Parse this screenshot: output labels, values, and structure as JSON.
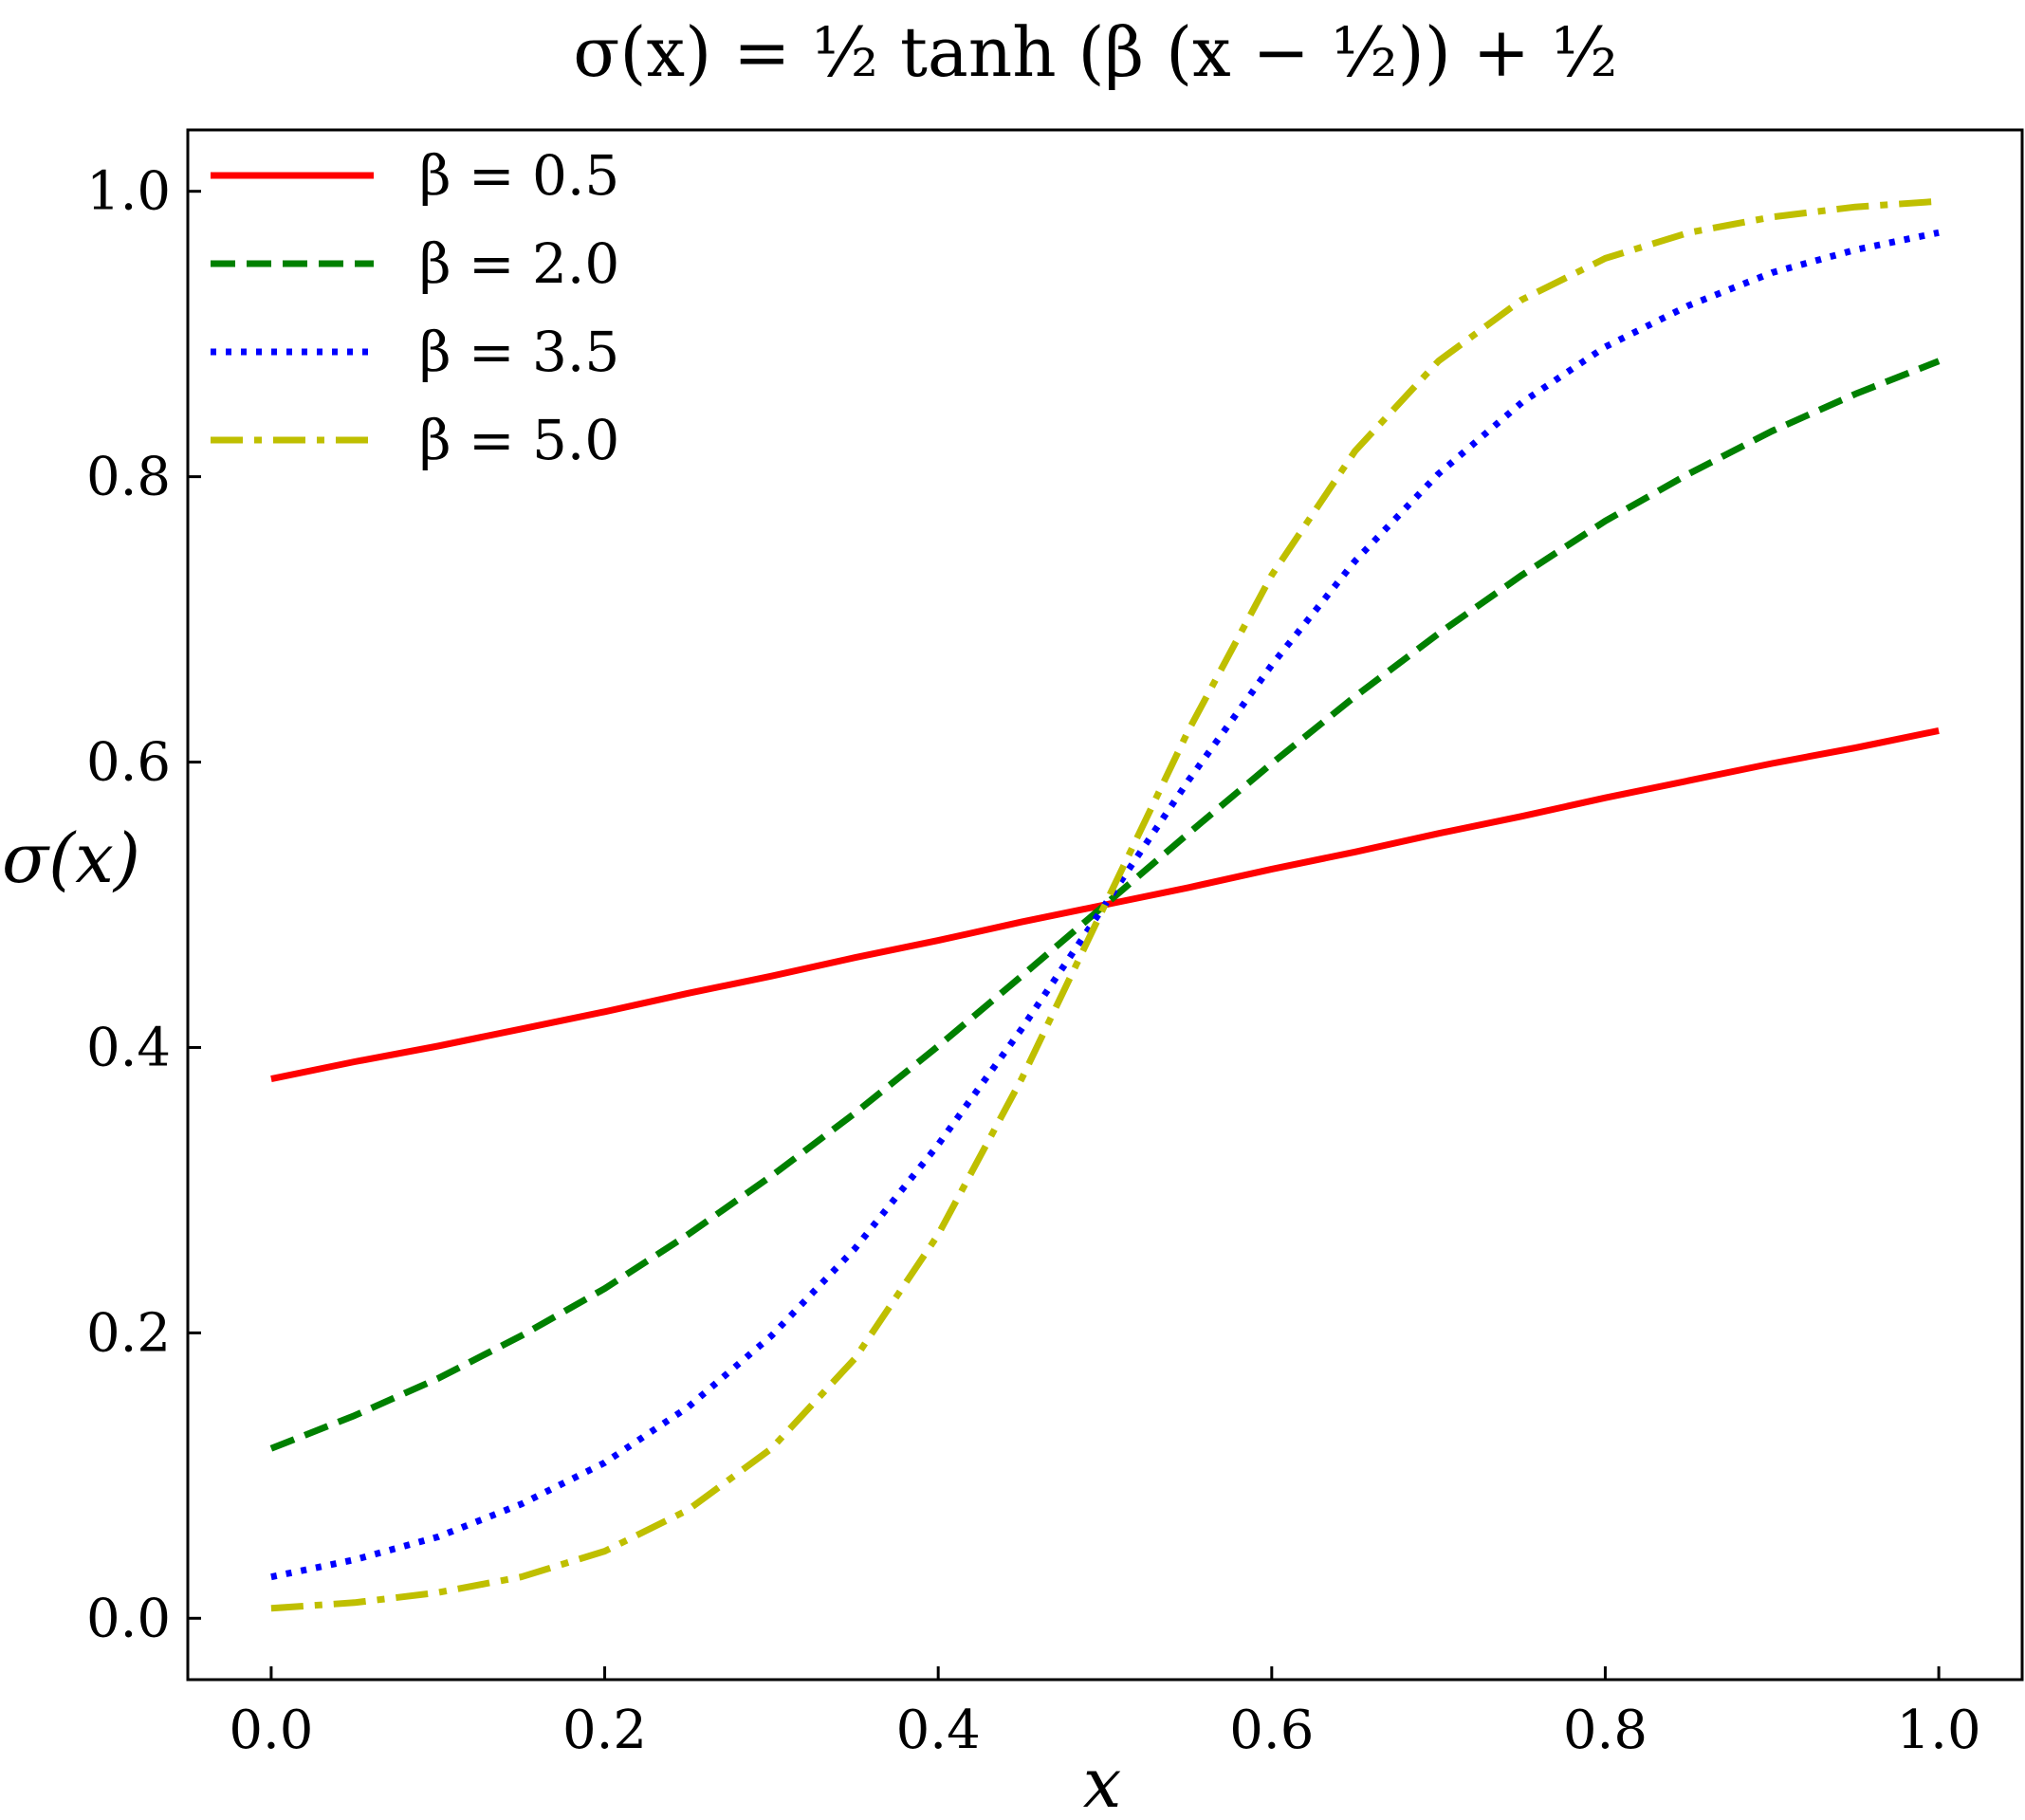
{
  "chart_data": {
    "type": "line",
    "title": "σ(x) = ½ tanh (β (x − ½)) + ½",
    "xlabel": "x",
    "ylabel": "σ(x)",
    "xlim": [
      -0.05,
      1.05
    ],
    "ylim": [
      -0.043,
      1.043
    ],
    "xticks": [
      0.0,
      0.2,
      0.4,
      0.6,
      0.8,
      1.0
    ],
    "yticks": [
      0.0,
      0.2,
      0.4,
      0.6,
      0.8,
      1.0
    ],
    "xtick_labels": [
      "0.0",
      "0.2",
      "0.4",
      "0.6",
      "0.8",
      "1.0"
    ],
    "ytick_labels": [
      "0.0",
      "0.2",
      "0.4",
      "0.6",
      "0.8",
      "1.0"
    ],
    "grid": false,
    "legend_position": "top-left",
    "x": [
      0.0,
      0.05,
      0.1,
      0.15,
      0.2,
      0.25,
      0.3,
      0.35,
      0.4,
      0.45,
      0.5,
      0.55,
      0.6,
      0.65,
      0.7,
      0.75,
      0.8,
      0.85,
      0.9,
      0.95,
      1.0
    ],
    "series": [
      {
        "name": "β = 0.5",
        "color": "#ff0000",
        "style": "solid",
        "values": [
          0.378,
          0.39,
          0.401,
          0.413,
          0.425,
          0.438,
          0.45,
          0.463,
          0.475,
          0.488,
          0.5,
          0.512,
          0.525,
          0.537,
          0.55,
          0.562,
          0.575,
          0.587,
          0.599,
          0.61,
          0.622
        ]
      },
      {
        "name": "β = 2.0",
        "color": "#008000",
        "style": "dashed",
        "values": [
          0.119,
          0.142,
          0.168,
          0.198,
          0.231,
          0.269,
          0.31,
          0.354,
          0.401,
          0.45,
          0.5,
          0.55,
          0.599,
          0.646,
          0.69,
          0.731,
          0.769,
          0.802,
          0.832,
          0.858,
          0.881
        ]
      },
      {
        "name": "β = 3.5",
        "color": "#0000ff",
        "style": "dotted",
        "values": [
          0.029,
          0.041,
          0.057,
          0.08,
          0.109,
          0.148,
          0.198,
          0.259,
          0.332,
          0.413,
          0.5,
          0.587,
          0.668,
          0.741,
          0.802,
          0.852,
          0.891,
          0.92,
          0.943,
          0.959,
          0.971
        ]
      },
      {
        "name": "β = 5.0",
        "color": "#bfbf00",
        "style": "dashdot",
        "values": [
          0.007,
          0.011,
          0.018,
          0.029,
          0.047,
          0.076,
          0.119,
          0.182,
          0.269,
          0.378,
          0.5,
          0.622,
          0.731,
          0.818,
          0.881,
          0.924,
          0.953,
          0.971,
          0.982,
          0.989,
          0.993
        ]
      }
    ]
  }
}
